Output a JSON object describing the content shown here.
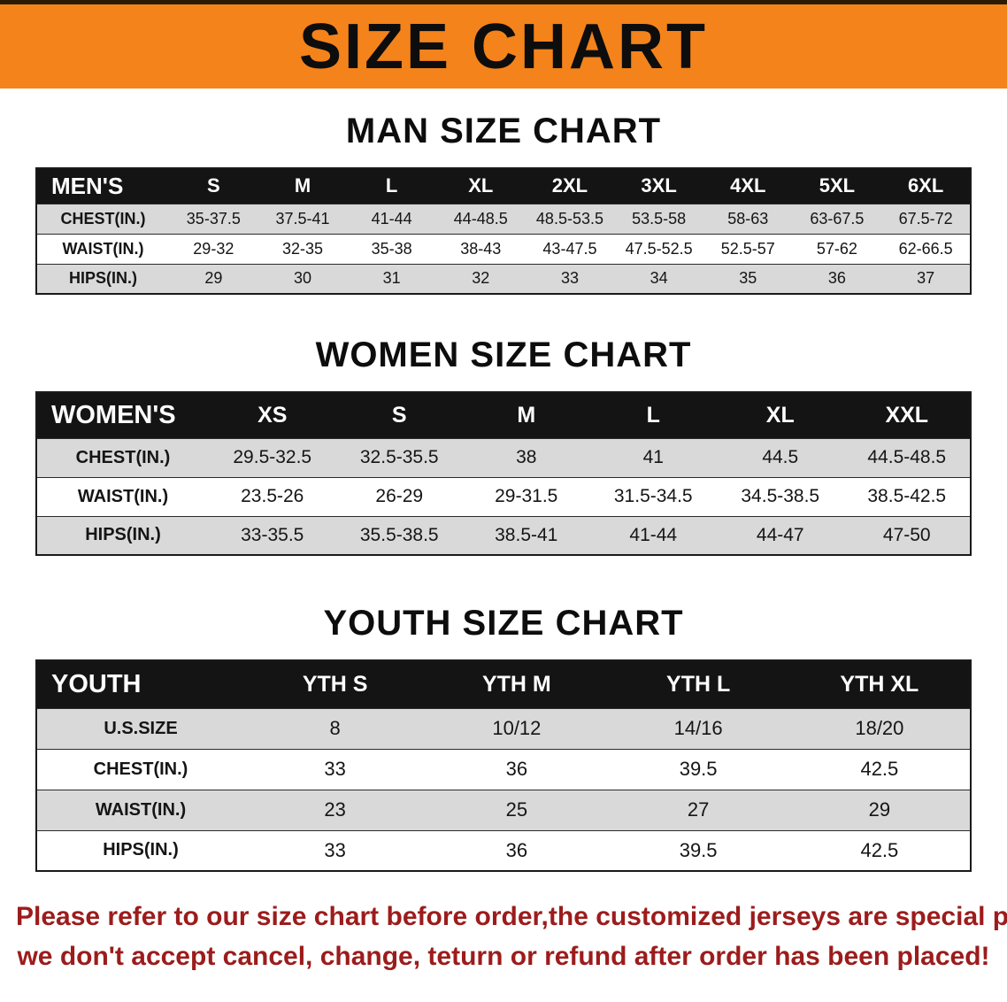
{
  "banner": {
    "title": "SIZE CHART"
  },
  "sections": [
    {
      "id": "mens",
      "heading": "MAN SIZE CHART",
      "table": {
        "corner_label": "MEN'S",
        "columns": [
          "S",
          "M",
          "L",
          "XL",
          "2XL",
          "3XL",
          "4XL",
          "5XL",
          "6XL"
        ],
        "rows": [
          {
            "label": "CHEST(IN.)",
            "values": [
              "35-37.5",
              "37.5-41",
              "41-44",
              "44-48.5",
              "48.5-53.5",
              "53.5-58",
              "58-63",
              "63-67.5",
              "67.5-72"
            ]
          },
          {
            "label": "WAIST(IN.)",
            "values": [
              "29-32",
              "32-35",
              "35-38",
              "38-43",
              "43-47.5",
              "47.5-52.5",
              "52.5-57",
              "57-62",
              "62-66.5"
            ]
          },
          {
            "label": "HIPS(IN.)",
            "values": [
              "29",
              "30",
              "31",
              "32",
              "33",
              "34",
              "35",
              "36",
              "37"
            ]
          }
        ]
      }
    },
    {
      "id": "womens",
      "heading": "WOMEN SIZE CHART",
      "table": {
        "corner_label": "WOMEN'S",
        "columns": [
          "XS",
          "S",
          "M",
          "L",
          "XL",
          "XXL"
        ],
        "rows": [
          {
            "label": "CHEST(IN.)",
            "values": [
              "29.5-32.5",
              "32.5-35.5",
              "38",
              "41",
              "44.5",
              "44.5-48.5"
            ]
          },
          {
            "label": "WAIST(IN.)",
            "values": [
              "23.5-26",
              "26-29",
              "29-31.5",
              "31.5-34.5",
              "34.5-38.5",
              "38.5-42.5"
            ]
          },
          {
            "label": "HIPS(IN.)",
            "values": [
              "33-35.5",
              "35.5-38.5",
              "38.5-41",
              "41-44",
              "44-47",
              "47-50"
            ]
          }
        ]
      }
    },
    {
      "id": "youth",
      "heading": "YOUTH SIZE CHART",
      "table": {
        "corner_label": "YOUTH",
        "columns": [
          "YTH S",
          "YTH M",
          "YTH L",
          "YTH XL"
        ],
        "rows": [
          {
            "label": "U.S.SIZE",
            "values": [
              "8",
              "10/12",
              "14/16",
              "18/20"
            ]
          },
          {
            "label": "CHEST(IN.)",
            "values": [
              "33",
              "36",
              "39.5",
              "42.5"
            ]
          },
          {
            "label": "WAIST(IN.)",
            "values": [
              "23",
              "25",
              "27",
              "29"
            ]
          },
          {
            "label": "HIPS(IN.)",
            "values": [
              "33",
              "36",
              "39.5",
              "42.5"
            ]
          }
        ]
      }
    }
  ],
  "footer": {
    "line1": "Please refer to our size chart before order,the customized jerseys are special products,",
    "line2": "we don't accept cancel, change, teturn or refund after order has been placed!"
  },
  "colors": {
    "banner_orange": "#F4831B",
    "table_header_black": "#141414",
    "row_stripe_gray": "#d9d9d9",
    "note_red": "#9c1c1c"
  }
}
